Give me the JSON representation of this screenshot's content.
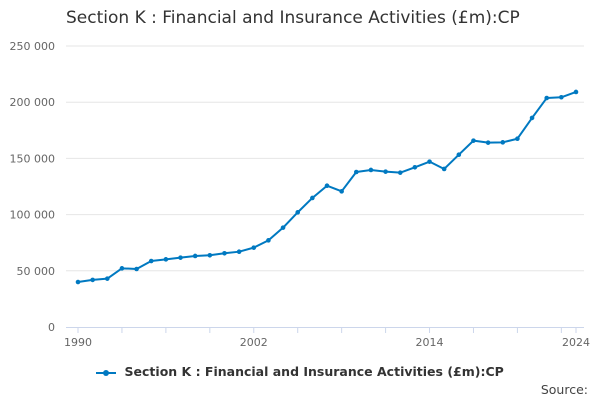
{
  "chart_data": {
    "type": "line",
    "title": "Section K : Financial and Insurance Activities (£m):CP",
    "xlabel": "",
    "ylabel": "",
    "ylim": [
      0,
      250000
    ],
    "xlim": [
      1990,
      2024
    ],
    "y_ticks": [
      "0",
      "50 000",
      "100 000",
      "150 000",
      "200 000",
      "250 000"
    ],
    "x_tick_labels": [
      "1990",
      "2002",
      "2014",
      "2024"
    ],
    "grid": "horizontal",
    "legend_position": "bottom",
    "color": "#0079c1",
    "x": [
      1990,
      1991,
      1992,
      1993,
      1994,
      1995,
      1996,
      1997,
      1998,
      1999,
      2000,
      2001,
      2002,
      2003,
      2004,
      2005,
      2006,
      2007,
      2008,
      2009,
      2010,
      2011,
      2012,
      2013,
      2014,
      2015,
      2016,
      2017,
      2018,
      2019,
      2020,
      2021,
      2022,
      2023,
      2024
    ],
    "series": [
      {
        "name": "Section K : Financial and Insurance Activities (£m):CP",
        "values": [
          40000,
          41900,
          43000,
          52200,
          51600,
          58700,
          60200,
          61700,
          63200,
          63800,
          65600,
          67000,
          70600,
          77100,
          88400,
          102000,
          114800,
          125700,
          120700,
          137900,
          139700,
          138200,
          137300,
          142100,
          147100,
          140600,
          153300,
          165800,
          164000,
          164300,
          167500,
          186000,
          203700,
          204400,
          209100
        ]
      }
    ]
  },
  "legend": {
    "label": "Section K : Financial and Insurance Activities (£m):CP"
  },
  "source": {
    "label": "Source:"
  }
}
